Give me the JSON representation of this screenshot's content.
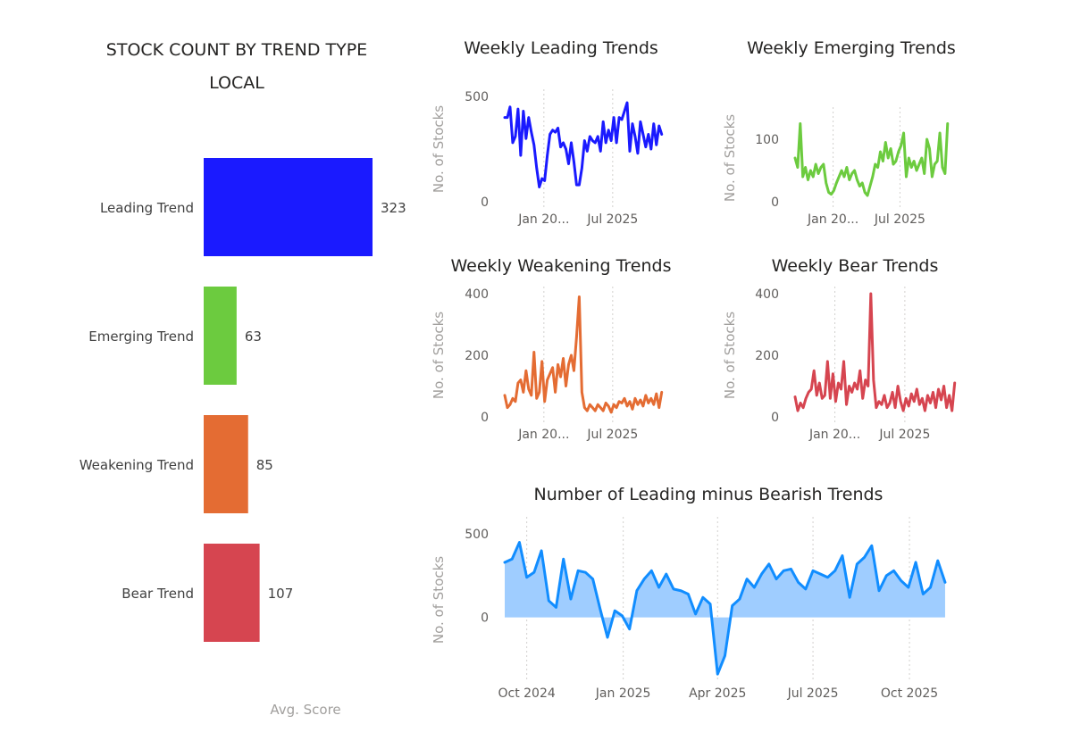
{
  "chart_data": [
    {
      "type": "bar",
      "orientation": "horizontal",
      "title": "STOCK COUNT BY TREND TYPE",
      "subtitle": "LOCAL",
      "xlabel": "Avg. Score",
      "categories": [
        "Leading Trend",
        "Emerging Trend",
        "Weakening Trend",
        "Bear Trend"
      ],
      "values": [
        323,
        63,
        85,
        107
      ],
      "colors": [
        "#1a1aff",
        "#6ccb3f",
        "#e46c33",
        "#d64550"
      ],
      "data_labels": [
        "323",
        "63",
        "85",
        "107"
      ]
    },
    {
      "type": "line",
      "title": "Weekly Leading Trends",
      "ylabel": "No. of Stocks",
      "color": "#1a1aff",
      "ylim": [
        0,
        500
      ],
      "yticks": [
        0,
        500
      ],
      "xlim": [
        "2024-09-20",
        "2025-11-10"
      ],
      "xticks": [
        {
          "date": "2025-01-01",
          "label": "Jan 20..."
        },
        {
          "date": "2025-07-01",
          "label": "Jul 2025"
        }
      ],
      "x": [
        "2024-09-20",
        "2024-09-27",
        "2024-10-04",
        "2024-10-11",
        "2024-10-18",
        "2024-10-25",
        "2024-11-01",
        "2024-11-08",
        "2024-11-15",
        "2024-11-22",
        "2024-11-29",
        "2024-12-06",
        "2024-12-13",
        "2024-12-20",
        "2024-12-27",
        "2025-01-03",
        "2025-01-10",
        "2025-01-17",
        "2025-01-24",
        "2025-01-31",
        "2025-02-07",
        "2025-02-14",
        "2025-02-21",
        "2025-02-28",
        "2025-03-07",
        "2025-03-14",
        "2025-03-21",
        "2025-03-28",
        "2025-04-04",
        "2025-04-11",
        "2025-04-18",
        "2025-04-25",
        "2025-05-02",
        "2025-05-09",
        "2025-05-16",
        "2025-05-23",
        "2025-05-30",
        "2025-06-06",
        "2025-06-13",
        "2025-06-20",
        "2025-06-27",
        "2025-07-04",
        "2025-07-11",
        "2025-07-18",
        "2025-07-25",
        "2025-08-01",
        "2025-08-08",
        "2025-08-15",
        "2025-08-22",
        "2025-08-29",
        "2025-09-05",
        "2025-09-12",
        "2025-09-19",
        "2025-09-26",
        "2025-10-03",
        "2025-10-10",
        "2025-10-17",
        "2025-10-24",
        "2025-10-31",
        "2025-11-07"
      ],
      "y": [
        400,
        400,
        450,
        280,
        310,
        440,
        220,
        430,
        300,
        400,
        330,
        270,
        160,
        70,
        110,
        100,
        220,
        320,
        340,
        330,
        350,
        260,
        280,
        250,
        180,
        280,
        190,
        80,
        80,
        160,
        290,
        240,
        310,
        290,
        280,
        310,
        240,
        380,
        280,
        340,
        290,
        400,
        280,
        400,
        390,
        430,
        470,
        240,
        370,
        310,
        230,
        380,
        320,
        260,
        320,
        250,
        370,
        270,
        360,
        320
      ]
    },
    {
      "type": "line",
      "title": "Weekly Emerging Trends",
      "ylabel": "No. of Stocks",
      "color": "#6ccb3f",
      "ylim": [
        0,
        140
      ],
      "yticks": [
        0,
        100
      ],
      "xlim": [
        "2024-09-20",
        "2025-11-10"
      ],
      "xticks": [
        {
          "date": "2025-01-01",
          "label": "Jan 20..."
        },
        {
          "date": "2025-07-01",
          "label": "Jul 2025"
        }
      ],
      "x": [
        "2024-09-20",
        "2024-09-27",
        "2024-10-04",
        "2024-10-11",
        "2024-10-18",
        "2024-10-25",
        "2024-11-01",
        "2024-11-08",
        "2024-11-15",
        "2024-11-22",
        "2024-11-29",
        "2024-12-06",
        "2024-12-13",
        "2024-12-20",
        "2024-12-27",
        "2025-01-03",
        "2025-01-10",
        "2025-01-17",
        "2025-01-24",
        "2025-01-31",
        "2025-02-07",
        "2025-02-14",
        "2025-02-21",
        "2025-02-28",
        "2025-03-07",
        "2025-03-14",
        "2025-03-21",
        "2025-03-28",
        "2025-04-04",
        "2025-04-11",
        "2025-04-18",
        "2025-04-25",
        "2025-05-02",
        "2025-05-09",
        "2025-05-16",
        "2025-05-23",
        "2025-05-30",
        "2025-06-06",
        "2025-06-13",
        "2025-06-20",
        "2025-06-27",
        "2025-07-04",
        "2025-07-11",
        "2025-07-18",
        "2025-07-25",
        "2025-08-01",
        "2025-08-08",
        "2025-08-15",
        "2025-08-22",
        "2025-08-29",
        "2025-09-05",
        "2025-09-12",
        "2025-09-19",
        "2025-09-26",
        "2025-10-03",
        "2025-10-10",
        "2025-10-17",
        "2025-10-24",
        "2025-10-31",
        "2025-11-07"
      ],
      "y": [
        70,
        55,
        125,
        40,
        55,
        35,
        50,
        40,
        60,
        45,
        55,
        60,
        30,
        15,
        12,
        18,
        30,
        40,
        50,
        40,
        55,
        35,
        45,
        50,
        35,
        25,
        30,
        15,
        10,
        25,
        40,
        60,
        55,
        80,
        65,
        95,
        70,
        85,
        60,
        65,
        80,
        90,
        110,
        40,
        70,
        55,
        65,
        50,
        60,
        70,
        45,
        100,
        85,
        40,
        60,
        65,
        110,
        55,
        45,
        125
      ]
    },
    {
      "type": "line",
      "title": "Weekly Weakening Trends",
      "ylabel": "No. of Stocks",
      "color": "#e46c33",
      "ylim": [
        0,
        400
      ],
      "yticks": [
        0,
        200,
        400
      ],
      "xlim": [
        "2024-09-20",
        "2025-11-10"
      ],
      "xticks": [
        {
          "date": "2025-01-01",
          "label": "Jan 20..."
        },
        {
          "date": "2025-07-01",
          "label": "Jul 2025"
        }
      ],
      "x": [
        "2024-09-20",
        "2024-09-27",
        "2024-10-04",
        "2024-10-11",
        "2024-10-18",
        "2024-10-25",
        "2024-11-01",
        "2024-11-08",
        "2024-11-15",
        "2024-11-22",
        "2024-11-29",
        "2024-12-06",
        "2024-12-13",
        "2024-12-20",
        "2024-12-27",
        "2025-01-03",
        "2025-01-10",
        "2025-01-17",
        "2025-01-24",
        "2025-01-31",
        "2025-02-07",
        "2025-02-14",
        "2025-02-21",
        "2025-02-28",
        "2025-03-07",
        "2025-03-14",
        "2025-03-21",
        "2025-03-28",
        "2025-04-04",
        "2025-04-11",
        "2025-04-18",
        "2025-04-25",
        "2025-05-02",
        "2025-05-09",
        "2025-05-16",
        "2025-05-23",
        "2025-05-30",
        "2025-06-06",
        "2025-06-13",
        "2025-06-20",
        "2025-06-27",
        "2025-07-04",
        "2025-07-11",
        "2025-07-18",
        "2025-07-25",
        "2025-08-01",
        "2025-08-08",
        "2025-08-15",
        "2025-08-22",
        "2025-08-29",
        "2025-09-05",
        "2025-09-12",
        "2025-09-19",
        "2025-09-26",
        "2025-10-03",
        "2025-10-10",
        "2025-10-17",
        "2025-10-24",
        "2025-10-31",
        "2025-11-07"
      ],
      "y": [
        70,
        30,
        40,
        60,
        50,
        110,
        120,
        80,
        150,
        90,
        70,
        210,
        60,
        80,
        180,
        50,
        120,
        140,
        160,
        80,
        170,
        130,
        190,
        100,
        170,
        200,
        150,
        260,
        390,
        80,
        30,
        20,
        40,
        30,
        20,
        40,
        30,
        20,
        45,
        35,
        15,
        40,
        30,
        50,
        45,
        60,
        35,
        50,
        25,
        60,
        40,
        55,
        35,
        70,
        45,
        60,
        40,
        75,
        30,
        80
      ]
    },
    {
      "type": "line",
      "title": "Weekly Bear Trends",
      "ylabel": "No. of Stocks",
      "color": "#d64550",
      "ylim": [
        0,
        400
      ],
      "yticks": [
        0,
        200,
        400
      ],
      "xlim": [
        "2024-09-20",
        "2025-11-10"
      ],
      "xticks": [
        {
          "date": "2025-01-01",
          "label": "Jan 20..."
        },
        {
          "date": "2025-07-01",
          "label": "Jul 2025"
        }
      ],
      "x": [
        "2024-09-20",
        "2024-09-27",
        "2024-10-04",
        "2024-10-11",
        "2024-10-18",
        "2024-10-25",
        "2024-11-01",
        "2024-11-08",
        "2024-11-15",
        "2024-11-22",
        "2024-11-29",
        "2024-12-06",
        "2024-12-13",
        "2024-12-20",
        "2024-12-27",
        "2025-01-03",
        "2025-01-10",
        "2025-01-17",
        "2025-01-24",
        "2025-01-31",
        "2025-02-07",
        "2025-02-14",
        "2025-02-21",
        "2025-02-28",
        "2025-03-07",
        "2025-03-14",
        "2025-03-21",
        "2025-03-28",
        "2025-04-04",
        "2025-04-11",
        "2025-04-18",
        "2025-04-25",
        "2025-05-02",
        "2025-05-09",
        "2025-05-16",
        "2025-05-23",
        "2025-05-30",
        "2025-06-06",
        "2025-06-13",
        "2025-06-20",
        "2025-06-27",
        "2025-07-04",
        "2025-07-11",
        "2025-07-18",
        "2025-07-25",
        "2025-08-01",
        "2025-08-08",
        "2025-08-15",
        "2025-08-22",
        "2025-08-29",
        "2025-09-05",
        "2025-09-12",
        "2025-09-19",
        "2025-09-26",
        "2025-10-03",
        "2025-10-10",
        "2025-10-17",
        "2025-10-24",
        "2025-10-31",
        "2025-11-07"
      ],
      "y": [
        65,
        20,
        45,
        30,
        60,
        80,
        90,
        150,
        70,
        110,
        60,
        70,
        180,
        60,
        140,
        50,
        110,
        90,
        180,
        40,
        100,
        80,
        110,
        90,
        150,
        60,
        120,
        100,
        400,
        120,
        30,
        50,
        40,
        70,
        30,
        45,
        80,
        30,
        100,
        50,
        20,
        60,
        35,
        75,
        50,
        90,
        40,
        60,
        20,
        70,
        45,
        80,
        30,
        90,
        55,
        100,
        30,
        70,
        20,
        110
      ]
    },
    {
      "type": "area",
      "title": "Number of Leading minus Bearish Trends",
      "ylabel": "No. of Stocks",
      "color": "#118dff",
      "fill": "#9fcdff",
      "ylim": [
        -350,
        560
      ],
      "yticks": [
        0,
        500
      ],
      "xlim": [
        "2024-09-10",
        "2025-11-10"
      ],
      "xticks": [
        {
          "date": "2024-10-01",
          "label": "Oct 2024"
        },
        {
          "date": "2025-01-01",
          "label": "Jan 2025"
        },
        {
          "date": "2025-04-01",
          "label": "Apr 2025"
        },
        {
          "date": "2025-07-01",
          "label": "Jul 2025"
        },
        {
          "date": "2025-10-01",
          "label": "Oct 2025"
        }
      ],
      "x": [
        "2024-09-10",
        "2024-09-17",
        "2024-09-24",
        "2024-10-01",
        "2024-10-08",
        "2024-10-15",
        "2024-10-22",
        "2024-10-29",
        "2024-11-05",
        "2024-11-12",
        "2024-11-19",
        "2024-11-26",
        "2024-12-03",
        "2024-12-10",
        "2024-12-17",
        "2024-12-24",
        "2024-12-31",
        "2025-01-07",
        "2025-01-14",
        "2025-01-21",
        "2025-01-28",
        "2025-02-04",
        "2025-02-11",
        "2025-02-18",
        "2025-02-25",
        "2025-03-04",
        "2025-03-11",
        "2025-03-18",
        "2025-03-25",
        "2025-04-01",
        "2025-04-08",
        "2025-04-15",
        "2025-04-22",
        "2025-04-29",
        "2025-05-06",
        "2025-05-13",
        "2025-05-20",
        "2025-05-27",
        "2025-06-03",
        "2025-06-10",
        "2025-06-17",
        "2025-06-24",
        "2025-07-01",
        "2025-07-08",
        "2025-07-15",
        "2025-07-22",
        "2025-07-29",
        "2025-08-05",
        "2025-08-12",
        "2025-08-19",
        "2025-08-26",
        "2025-09-02",
        "2025-09-09",
        "2025-09-16",
        "2025-09-23",
        "2025-09-30",
        "2025-10-07",
        "2025-10-14",
        "2025-10-21",
        "2025-10-28",
        "2025-11-04"
      ],
      "y": [
        330,
        350,
        450,
        240,
        270,
        400,
        100,
        60,
        350,
        110,
        280,
        270,
        230,
        50,
        -120,
        40,
        10,
        -70,
        160,
        230,
        280,
        180,
        260,
        170,
        160,
        140,
        20,
        120,
        80,
        -340,
        -230,
        70,
        110,
        230,
        180,
        260,
        320,
        230,
        280,
        290,
        210,
        170,
        280,
        260,
        240,
        280,
        370,
        120,
        320,
        360,
        430,
        160,
        250,
        280,
        220,
        180,
        330,
        140,
        180,
        340,
        210
      ]
    }
  ]
}
